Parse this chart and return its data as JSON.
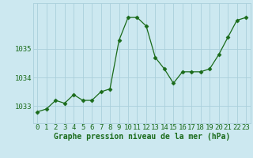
{
  "x": [
    0,
    1,
    2,
    3,
    4,
    5,
    6,
    7,
    8,
    9,
    10,
    11,
    12,
    13,
    14,
    15,
    16,
    17,
    18,
    19,
    20,
    21,
    22,
    23
  ],
  "y": [
    1032.8,
    1032.9,
    1033.2,
    1033.1,
    1033.4,
    1033.2,
    1033.2,
    1033.5,
    1033.6,
    1035.3,
    1036.1,
    1036.1,
    1035.8,
    1034.7,
    1034.3,
    1033.8,
    1034.2,
    1034.2,
    1034.2,
    1034.3,
    1034.8,
    1035.4,
    1036.0,
    1036.1
  ],
  "line_color": "#1a6b1a",
  "marker": "D",
  "marker_size": 2.5,
  "bg_color": "#cce8f0",
  "grid_color": "#aacfdb",
  "xlabel": "Graphe pression niveau de la mer (hPa)",
  "xlabel_fontsize": 7,
  "xlabel_color": "#1a6b1a",
  "tick_color": "#1a6b1a",
  "tick_fontsize": 6.5,
  "ytick_labels": [
    "1033",
    "1034",
    "1035"
  ],
  "ytick_values": [
    1033,
    1034,
    1035
  ],
  "ylim": [
    1032.4,
    1036.6
  ],
  "xlim": [
    -0.5,
    23.5
  ],
  "xtick_labels": [
    "0",
    "1",
    "2",
    "3",
    "4",
    "5",
    "6",
    "7",
    "8",
    "9",
    "10",
    "11",
    "12",
    "13",
    "14",
    "15",
    "16",
    "17",
    "18",
    "19",
    "20",
    "21",
    "22",
    "23"
  ]
}
